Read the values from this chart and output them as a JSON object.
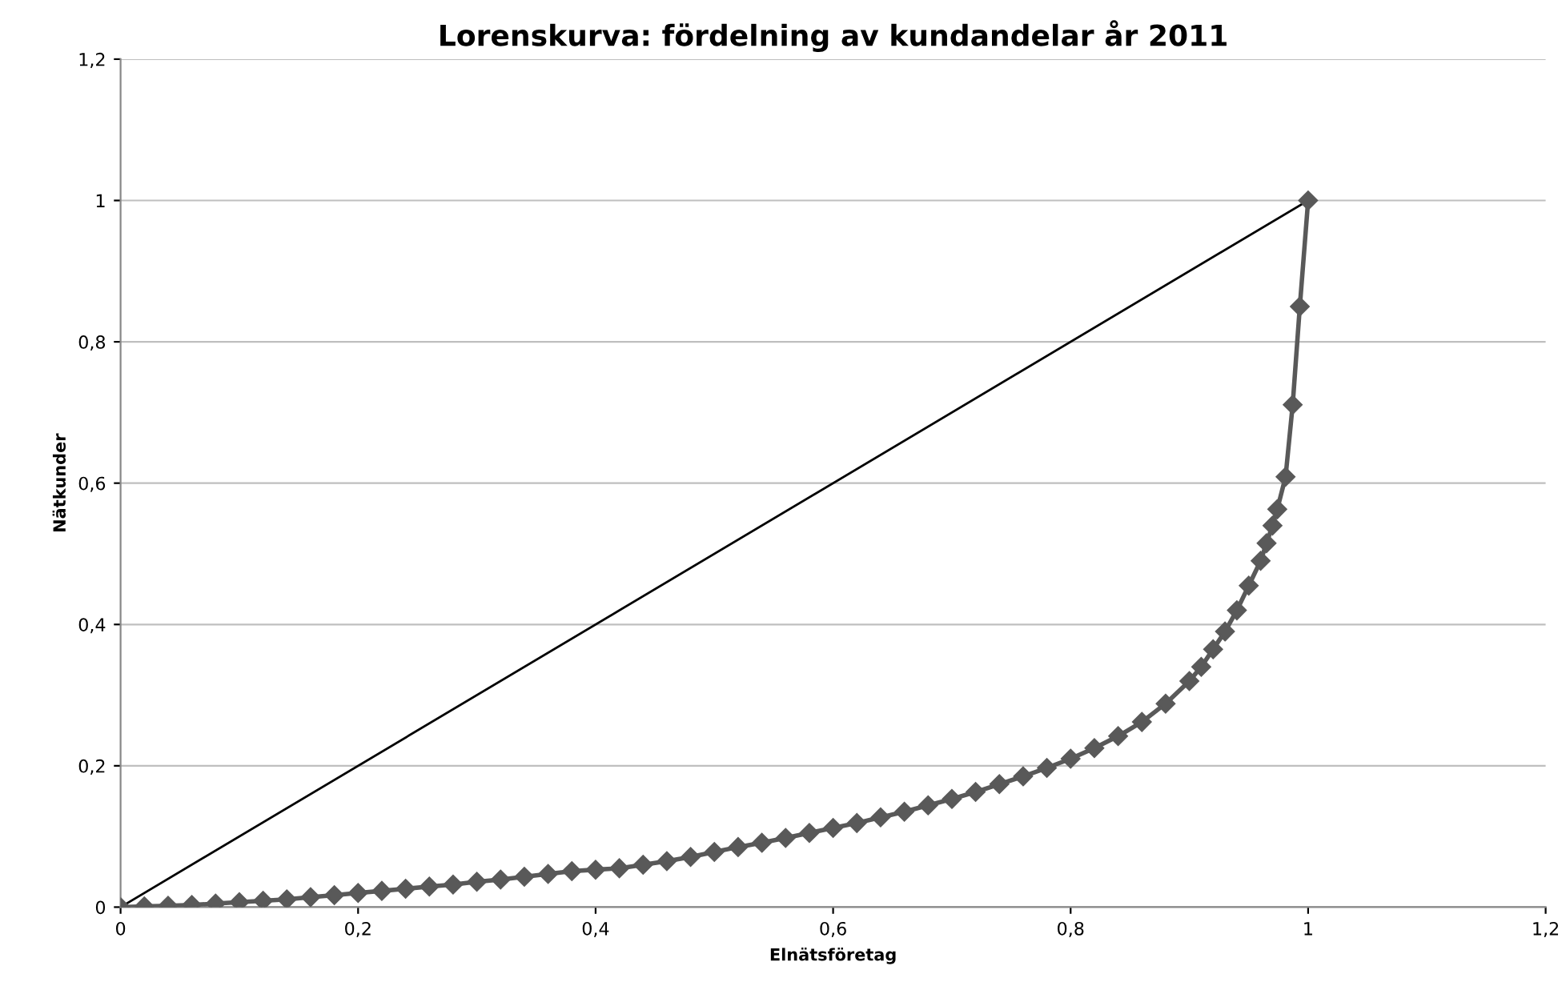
{
  "chart_data": {
    "type": "line",
    "title": "Lorenskurva: fördelning av kundandelar år 2011",
    "xlabel": "Elnätsföretag",
    "ylabel": "Nätkunder",
    "series": [
      {
        "color": "#000000",
        "marker": "none",
        "x": [
          0,
          1
        ],
        "values": [
          0,
          1
        ]
      },
      {
        "color": "#595959",
        "marker": "diamond",
        "x": [
          0,
          0.02,
          0.04,
          0.06,
          0.08,
          0.1,
          0.12,
          0.14,
          0.16,
          0.18,
          0.2,
          0.22,
          0.24,
          0.26,
          0.28,
          0.3,
          0.32,
          0.34,
          0.36,
          0.38,
          0.4,
          0.42,
          0.44,
          0.46,
          0.48,
          0.5,
          0.52,
          0.54,
          0.56,
          0.58,
          0.6,
          0.62,
          0.64,
          0.66,
          0.68,
          0.7,
          0.72,
          0.74,
          0.76,
          0.78,
          0.8,
          0.82,
          0.84,
          0.86,
          0.88,
          0.9,
          0.91,
          0.92,
          0.93,
          0.94,
          0.95,
          0.96,
          0.965,
          0.97,
          0.974,
          0.981,
          0.987,
          0.993,
          1
        ],
        "values": [
          0,
          0.001,
          0.002,
          0.003,
          0.005,
          0.007,
          0.009,
          0.011,
          0.014,
          0.017,
          0.02,
          0.023,
          0.026,
          0.029,
          0.032,
          0.036,
          0.039,
          0.043,
          0.047,
          0.051,
          0.053,
          0.055,
          0.06,
          0.065,
          0.071,
          0.078,
          0.085,
          0.091,
          0.098,
          0.105,
          0.112,
          0.119,
          0.127,
          0.135,
          0.144,
          0.153,
          0.163,
          0.174,
          0.185,
          0.197,
          0.21,
          0.225,
          0.242,
          0.262,
          0.288,
          0.32,
          0.34,
          0.365,
          0.39,
          0.42,
          0.455,
          0.49,
          0.515,
          0.54,
          0.563,
          0.609,
          0.711,
          0.85,
          1
        ]
      }
    ],
    "xlim": [
      0,
      1.2
    ],
    "ylim": [
      0,
      1.2
    ],
    "xticks": [
      0,
      {
        "value": 0.2,
        "label": "0,2"
      },
      {
        "value": 0.4,
        "label": "0,4"
      },
      {
        "value": 0.6,
        "label": "0,6"
      },
      {
        "value": 0.8,
        "label": "0,8"
      },
      1,
      {
        "value": 1.2,
        "label": "1,2"
      }
    ],
    "yticks": [
      0,
      {
        "value": 0.2,
        "label": "0,2"
      },
      {
        "value": 0.4,
        "label": "0,4"
      },
      {
        "value": 0.6,
        "label": "0,6"
      },
      {
        "value": 0.8,
        "label": "0,8"
      },
      1,
      {
        "value": 1.2,
        "label": "1,2"
      }
    ],
    "grid": "y",
    "legend": false
  }
}
